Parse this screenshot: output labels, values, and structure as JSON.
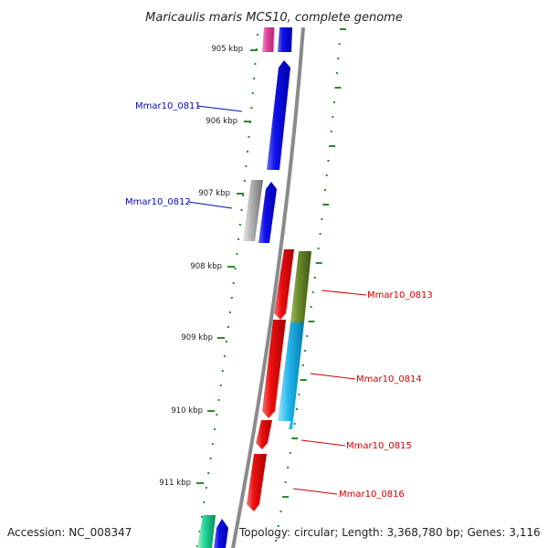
{
  "title": "Maricaulis maris MCS10, complete genome",
  "footer": {
    "accession": "Accession: NC_008347",
    "topology": "Topology: circular; Length: 3,368,780 bp; Genes: 3,116"
  },
  "scale": {
    "ticks": [
      {
        "label": "905 kbp",
        "kbp": 905
      },
      {
        "label": "906 kbp",
        "kbp": 906
      },
      {
        "label": "907 kbp",
        "kbp": 907
      },
      {
        "label": "908 kbp",
        "kbp": 908
      },
      {
        "label": "909 kbp",
        "kbp": 909
      },
      {
        "label": "910 kbp",
        "kbp": 910
      },
      {
        "label": "911 kbp",
        "kbp": 911
      }
    ]
  },
  "colors": {
    "backbone": "#8a8a8a",
    "tick_green": "#2a8a2a",
    "label_blue": "#0a0aa8",
    "label_red": "#cc0000",
    "gene_blue": "#1010ee",
    "gene_red": "#ee1010",
    "gene_magenta": "#e0198a",
    "gene_pink": "#f0b8e0",
    "gene_grey": "#b4b4b4",
    "gene_olive": "#6b8a2a",
    "gene_cyan": "#22b8ee",
    "gene_teal": "#22d89a"
  },
  "genes": [
    {
      "name": "Mmar10_0811",
      "color": "label_blue"
    },
    {
      "name": "Mmar10_0812",
      "color": "label_blue"
    },
    {
      "name": "Mmar10_0813",
      "color": "label_red"
    },
    {
      "name": "Mmar10_0814",
      "color": "label_red"
    },
    {
      "name": "Mmar10_0815",
      "color": "label_red"
    },
    {
      "name": "Mmar10_0816",
      "color": "label_red"
    }
  ]
}
